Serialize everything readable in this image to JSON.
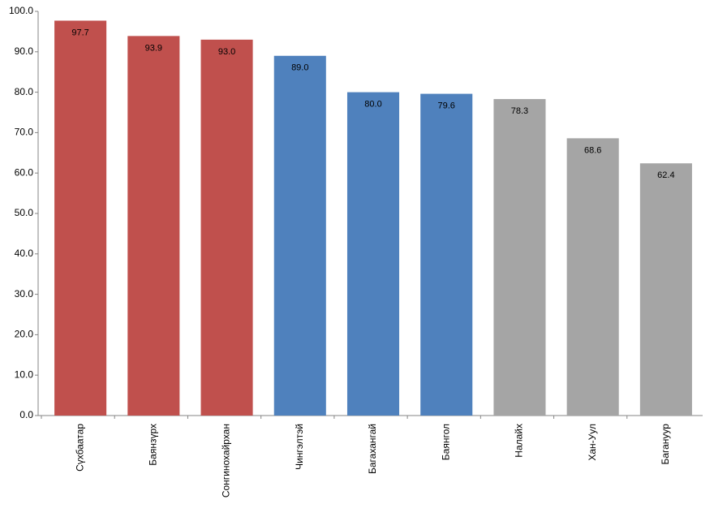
{
  "chart_data": {
    "type": "bar",
    "categories": [
      "Сүхбаатар",
      "Баянзүрх",
      "Сонгинохайрхан",
      "Чингэлтэй",
      "Багахангай",
      "Баянгол",
      "Налайх",
      "Хан-Уул",
      "Багануур"
    ],
    "values": [
      97.7,
      93.9,
      93.0,
      89.0,
      80.0,
      79.6,
      78.3,
      68.6,
      62.4
    ],
    "value_labels": [
      "97.7",
      "93.9",
      "93.0",
      "89.0",
      "80.0",
      "79.6",
      "78.3",
      "68.6",
      "62.4"
    ],
    "colors": [
      "#c0504d",
      "#c0504d",
      "#c0504d",
      "#4f81bd",
      "#4f81bd",
      "#4f81bd",
      "#a5a5a5",
      "#a5a5a5",
      "#a5a5a5"
    ],
    "ylim": [
      0,
      100
    ],
    "yticks": [
      {
        "value": 0,
        "label": "0.0"
      },
      {
        "value": 10,
        "label": "10.0"
      },
      {
        "value": 20,
        "label": "20.0"
      },
      {
        "value": 30,
        "label": "30.0"
      },
      {
        "value": 40,
        "label": "40.0"
      },
      {
        "value": 50,
        "label": "50.0"
      },
      {
        "value": 60,
        "label": "60.0"
      },
      {
        "value": 70,
        "label": "70.0"
      },
      {
        "value": 80,
        "label": "80.0"
      },
      {
        "value": 90,
        "label": "90.0"
      },
      {
        "value": 100,
        "label": "100.0"
      }
    ],
    "grid": false
  }
}
